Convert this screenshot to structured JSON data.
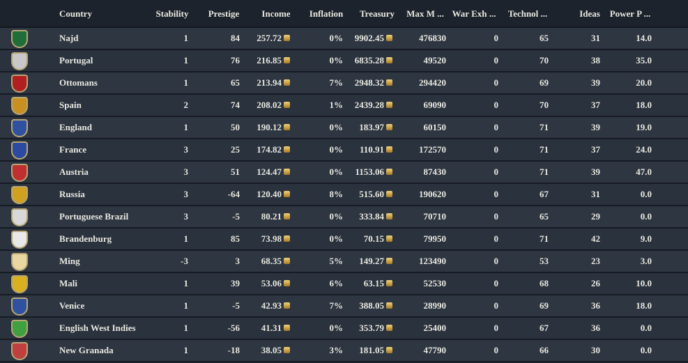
{
  "table": {
    "header": [
      "Country",
      "Stability",
      "Prestige",
      "Income",
      "Inflation",
      "Treasury",
      "Max M ...",
      "War Exh ...",
      "Technol ...",
      "Ideas",
      "Power P ..."
    ],
    "rows": [
      [
        "Najd",
        "1",
        "84",
        "257.72",
        "0%",
        "9902.45",
        "476830",
        "0",
        "65",
        "31",
        "14.0"
      ],
      [
        "Portugal",
        "1",
        "76",
        "216.85",
        "0%",
        "6835.28",
        "49520",
        "0",
        "70",
        "38",
        "35.0"
      ],
      [
        "Ottomans",
        "1",
        "65",
        "213.94",
        "7%",
        "2948.32",
        "294420",
        "0",
        "69",
        "39",
        "20.0"
      ],
      [
        "Spain",
        "2",
        "74",
        "208.02",
        "1%",
        "2439.28",
        "69090",
        "0",
        "70",
        "37",
        "18.0"
      ],
      [
        "England",
        "1",
        "50",
        "190.12",
        "0%",
        "183.97",
        "60150",
        "0",
        "71",
        "39",
        "19.0"
      ],
      [
        "France",
        "3",
        "25",
        "174.82",
        "0%",
        "110.91",
        "172570",
        "0",
        "71",
        "37",
        "24.0"
      ],
      [
        "Austria",
        "3",
        "51",
        "124.47",
        "0%",
        "1153.06",
        "87430",
        "0",
        "71",
        "39",
        "47.0"
      ],
      [
        "Russia",
        "3",
        "-64",
        "120.40",
        "8%",
        "515.60",
        "190620",
        "0",
        "67",
        "31",
        "0.0"
      ],
      [
        "Portuguese Brazil",
        "3",
        "-5",
        "80.21",
        "0%",
        "333.84",
        "70710",
        "0",
        "65",
        "29",
        "0.0"
      ],
      [
        "Brandenburg",
        "1",
        "85",
        "73.98",
        "0%",
        "70.15",
        "79950",
        "0",
        "71",
        "42",
        "9.0"
      ],
      [
        "Ming",
        "-3",
        "3",
        "68.35",
        "5%",
        "149.27",
        "123490",
        "0",
        "53",
        "23",
        "3.0"
      ],
      [
        "Mali",
        "1",
        "39",
        "53.06",
        "6%",
        "63.15",
        "52530",
        "0",
        "68",
        "26",
        "10.0"
      ],
      [
        "Venice",
        "1",
        "-5",
        "42.93",
        "7%",
        "388.05",
        "28990",
        "0",
        "69",
        "36",
        "18.0"
      ],
      [
        "English West Indies",
        "1",
        "-56",
        "41.31",
        "0%",
        "353.79",
        "25400",
        "0",
        "67",
        "36",
        "0.0"
      ],
      [
        "New Granada",
        "1",
        "-18",
        "38.05",
        "3%",
        "181.05",
        "47790",
        "0",
        "66",
        "30",
        "0.0"
      ]
    ]
  }
}
